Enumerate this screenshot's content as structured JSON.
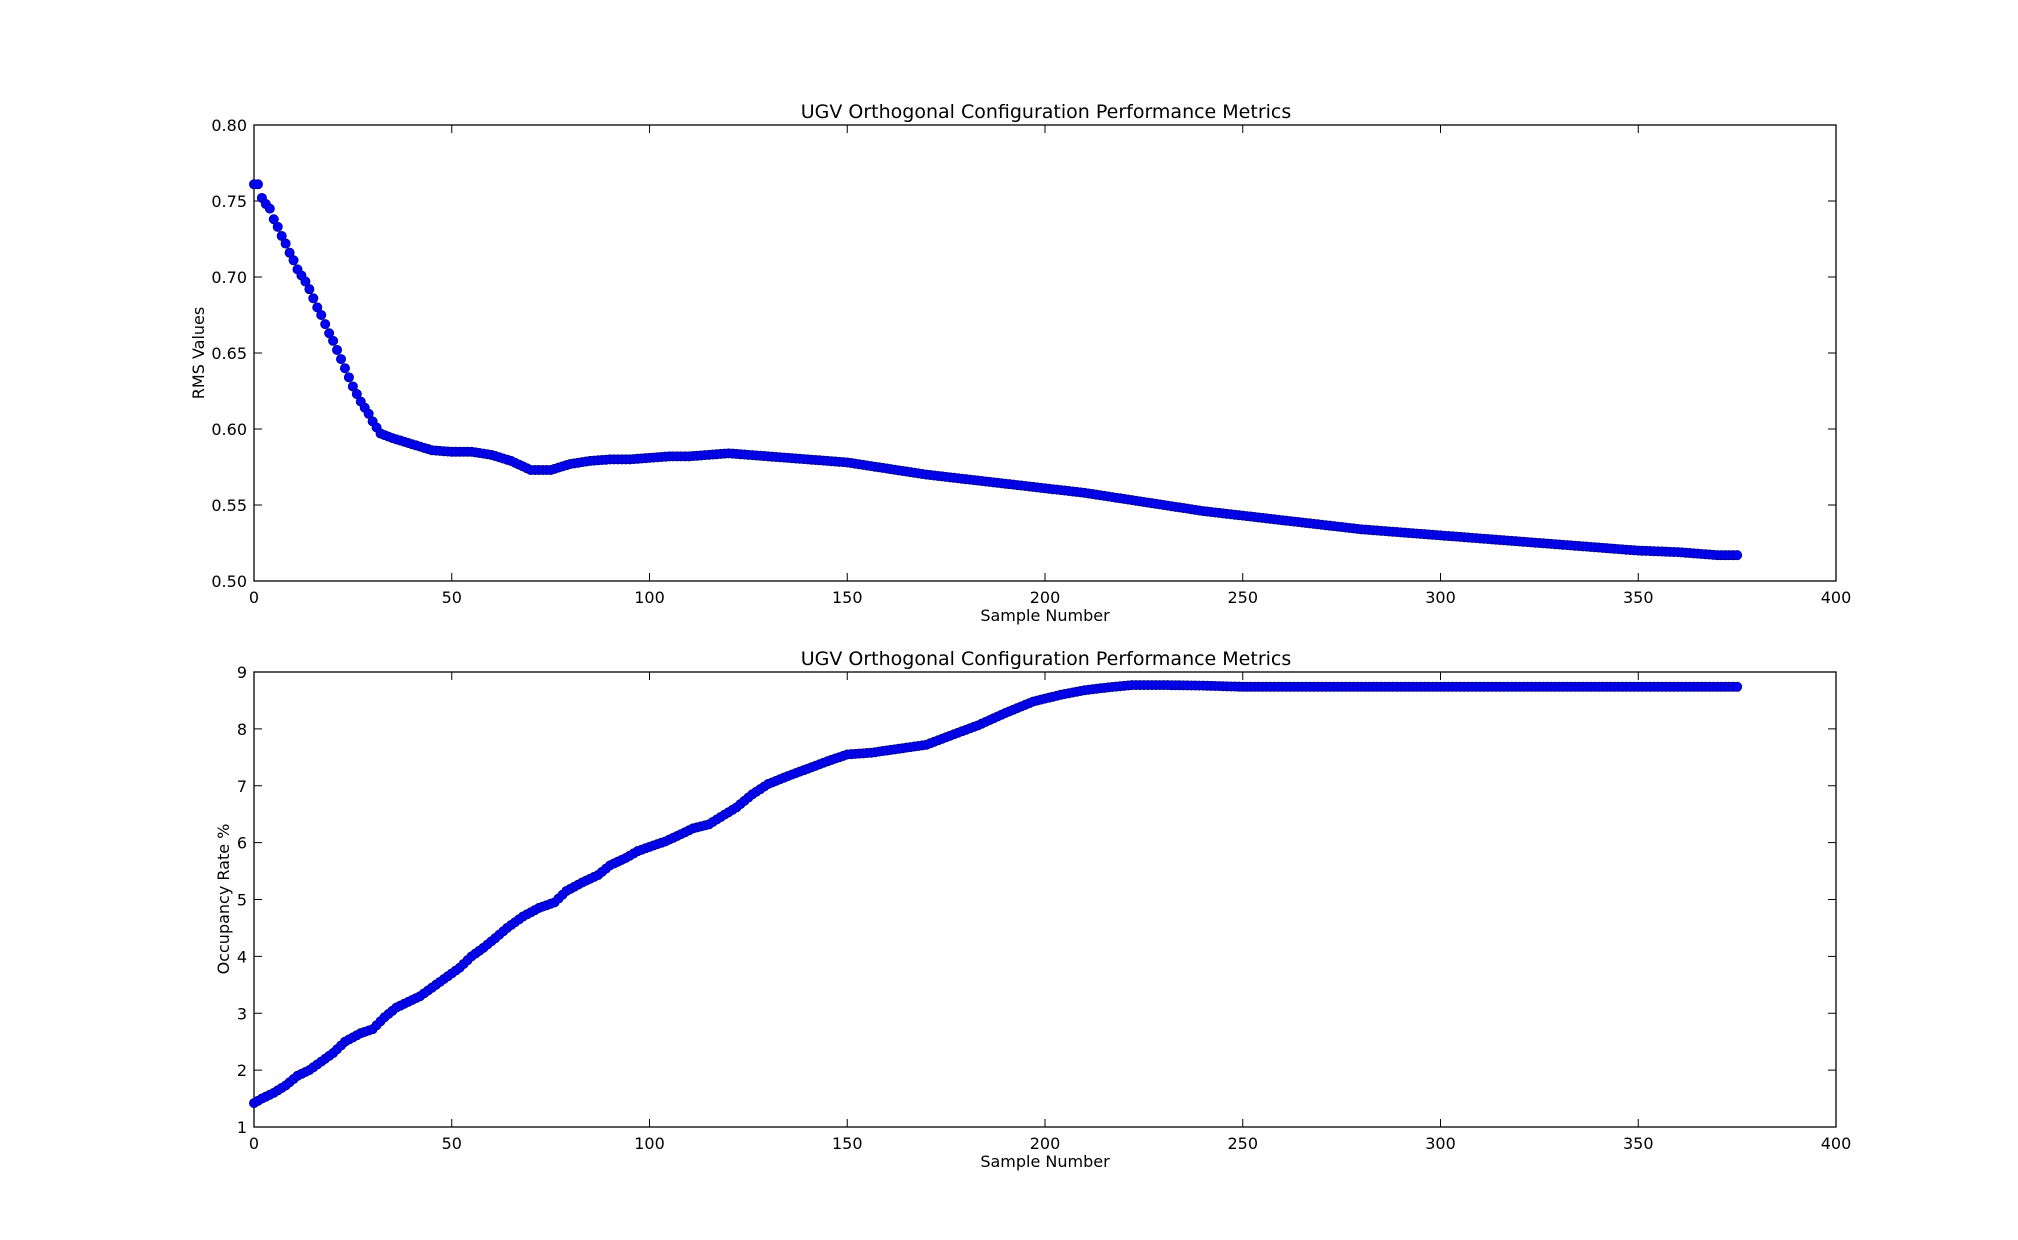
{
  "chart_data": [
    {
      "type": "scatter",
      "title": "UGV Orthogonal Configuration Performance  Metrics",
      "xlabel": "Sample Number",
      "ylabel": "RMS Values",
      "xlim": [
        0,
        400
      ],
      "ylim": [
        0.5,
        0.8
      ],
      "xticks": [
        "0",
        "50",
        "100",
        "150",
        "200",
        "250",
        "300",
        "350",
        "400"
      ],
      "yticks": [
        "0.50",
        "0.55",
        "0.60",
        "0.65",
        "0.70",
        "0.75",
        "0.80"
      ],
      "marker_color": "#0000ff",
      "grid": false,
      "series": [
        {
          "x": [
            1,
            2,
            3,
            4,
            5,
            6,
            7,
            8,
            9,
            10,
            11,
            12,
            13,
            14,
            15,
            16,
            17,
            18,
            19,
            20,
            21,
            22,
            23,
            24,
            25,
            26,
            27,
            28,
            29,
            30,
            31,
            32,
            33,
            35,
            40,
            45,
            50,
            55,
            60,
            65,
            70,
            75,
            80,
            85,
            90,
            95,
            100,
            105,
            110,
            115,
            120,
            125,
            130,
            140,
            150,
            160,
            170,
            180,
            190,
            200,
            210,
            220,
            230,
            240,
            250,
            260,
            270,
            280,
            290,
            300,
            310,
            320,
            330,
            340,
            350,
            360,
            370,
            375
          ],
          "y": [
            0.761,
            0.752,
            0.748,
            0.745,
            0.738,
            0.733,
            0.727,
            0.722,
            0.716,
            0.711,
            0.705,
            0.701,
            0.697,
            0.692,
            0.686,
            0.68,
            0.675,
            0.669,
            0.663,
            0.658,
            0.652,
            0.646,
            0.64,
            0.634,
            0.628,
            0.623,
            0.618,
            0.614,
            0.61,
            0.605,
            0.601,
            0.597,
            0.596,
            0.594,
            0.59,
            0.586,
            0.585,
            0.585,
            0.583,
            0.579,
            0.573,
            0.573,
            0.577,
            0.579,
            0.58,
            0.58,
            0.581,
            0.582,
            0.582,
            0.583,
            0.584,
            0.583,
            0.582,
            0.58,
            0.578,
            0.574,
            0.57,
            0.567,
            0.564,
            0.561,
            0.558,
            0.554,
            0.55,
            0.546,
            0.543,
            0.54,
            0.537,
            0.534,
            0.532,
            0.53,
            0.528,
            0.526,
            0.524,
            0.522,
            0.52,
            0.519,
            0.517,
            0.517
          ]
        }
      ]
    },
    {
      "type": "scatter",
      "title": "UGV Orthogonal Configuration Performance  Metrics",
      "xlabel": "Sample Number",
      "ylabel": "Occupancy Rate  %",
      "xlim": [
        0,
        400
      ],
      "ylim": [
        1,
        9
      ],
      "xticks": [
        "0",
        "50",
        "100",
        "150",
        "200",
        "250",
        "300",
        "350",
        "400"
      ],
      "yticks": [
        "1",
        "2",
        "3",
        "4",
        "5",
        "6",
        "7",
        "8",
        "9"
      ],
      "marker_color": "#0000ff",
      "grid": false,
      "series": [
        {
          "x": [
            0,
            2,
            5,
            8,
            11,
            14,
            17,
            20,
            23,
            27,
            30,
            33,
            36,
            39,
            42,
            45,
            48,
            52,
            55,
            58,
            61,
            64,
            68,
            72,
            76,
            79,
            83,
            87,
            90,
            94,
            97,
            101,
            104,
            108,
            111,
            115,
            118,
            122,
            126,
            130,
            135,
            140,
            145,
            150,
            156,
            163,
            170,
            176,
            183,
            190,
            197,
            204,
            210,
            216,
            222,
            230,
            240,
            250,
            280,
            310,
            340,
            375
          ],
          "y": [
            1.42,
            1.5,
            1.6,
            1.73,
            1.9,
            2.0,
            2.15,
            2.3,
            2.5,
            2.65,
            2.72,
            2.93,
            3.1,
            3.2,
            3.3,
            3.45,
            3.6,
            3.8,
            4.0,
            4.15,
            4.32,
            4.5,
            4.7,
            4.85,
            4.95,
            5.15,
            5.3,
            5.43,
            5.6,
            5.73,
            5.85,
            5.95,
            6.02,
            6.15,
            6.25,
            6.32,
            6.45,
            6.62,
            6.85,
            7.03,
            7.17,
            7.3,
            7.43,
            7.55,
            7.58,
            7.65,
            7.72,
            7.88,
            8.06,
            8.28,
            8.48,
            8.6,
            8.68,
            8.73,
            8.77,
            8.77,
            8.76,
            8.74,
            8.74,
            8.74,
            8.74,
            8.74
          ]
        }
      ]
    }
  ]
}
